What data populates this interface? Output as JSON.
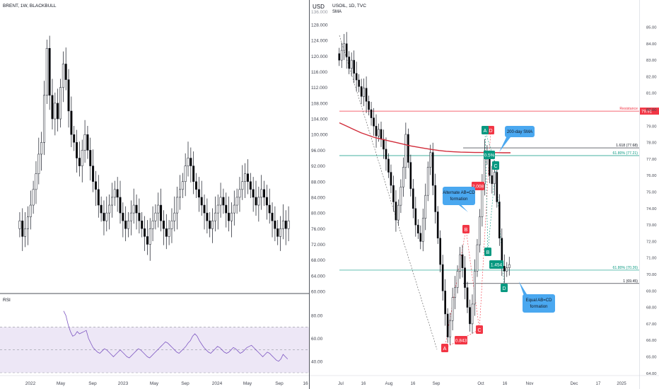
{
  "chart_data": [
    {
      "type": "candlestick",
      "title": "BRENT, 1W, BLACKBULL",
      "y_axis_label": "USD",
      "ylim": [
        60,
        136
      ],
      "y_ticks": [
        "128.000",
        "124.000",
        "120.000",
        "116.000",
        "112.000",
        "108.000",
        "104.000",
        "100.000",
        "96.000",
        "92.000",
        "88.000",
        "84.000",
        "80.000",
        "76.000",
        "72.000",
        "68.000",
        "64.000",
        "60.000"
      ],
      "y_top_partial": "136.000",
      "x_ticks": [
        "2022",
        "May",
        "Sep",
        "2023",
        "May",
        "Sep",
        "2024",
        "May",
        "Sep",
        "16"
      ],
      "closes_approx": [
        78,
        74,
        76,
        79,
        82,
        86,
        90,
        95,
        98,
        110,
        122,
        110,
        104,
        108,
        104,
        112,
        118,
        114,
        106,
        100,
        98,
        94,
        92,
        96,
        100,
        96,
        92,
        88,
        86,
        82,
        80,
        78,
        80,
        82,
        84,
        86,
        84,
        80,
        78,
        76,
        78,
        80,
        82,
        80,
        78,
        76,
        74,
        72,
        76,
        78,
        80,
        82,
        78,
        76,
        74,
        76,
        78,
        80,
        84,
        86,
        88,
        92,
        94,
        92,
        88,
        86,
        84,
        82,
        80,
        78,
        76,
        78,
        80,
        82,
        84,
        82,
        80,
        78,
        80,
        82,
        84,
        86,
        88,
        90,
        88,
        86,
        84,
        82,
        84,
        86,
        84,
        82,
        80,
        78,
        76,
        74,
        76,
        78,
        76,
        78
      ],
      "rsi": {
        "label": "RSI",
        "ylim": [
          30,
          90
        ],
        "y_ticks": [
          "80.00",
          "60.00",
          "40.00"
        ],
        "band": [
          30,
          70
        ],
        "mid": 50,
        "values_approx": [
          84,
          80,
          72,
          66,
          62,
          63,
          66,
          64,
          65,
          66,
          67,
          60,
          56,
          52,
          50,
          48,
          47,
          49,
          51,
          50,
          48,
          46,
          44,
          46,
          48,
          50,
          48,
          46,
          44,
          43,
          45,
          47,
          49,
          51,
          50,
          48,
          46,
          44,
          43,
          45,
          47,
          49,
          51,
          53,
          55,
          57,
          56,
          54,
          52,
          50,
          48,
          47,
          49,
          51,
          53,
          56,
          58,
          62,
          64,
          62,
          58,
          55,
          52,
          50,
          48,
          47,
          49,
          51,
          53,
          52,
          50,
          48,
          47,
          48,
          50,
          52,
          51,
          49,
          47,
          48,
          50,
          52,
          53,
          54,
          52,
          50,
          48,
          46,
          44,
          46,
          48,
          47,
          45,
          43,
          41,
          40,
          42,
          46,
          44,
          42
        ]
      }
    },
    {
      "type": "candlestick",
      "title": "USOIL, 1D, TVC",
      "subtitle": "SMA",
      "ylim": [
        63.5,
        85.5
      ],
      "y_ticks": [
        "85.00",
        "84.00",
        "83.00",
        "82.00",
        "81.00",
        "80.00",
        "79.00",
        "78.00",
        "77.00",
        "76.00",
        "75.00",
        "74.00",
        "73.00",
        "72.00",
        "71.00",
        "70.00",
        "69.00",
        "68.00",
        "67.00",
        "66.00",
        "65.00",
        "64.00"
      ],
      "x_ticks": [
        "Jul",
        "16",
        "Aug",
        "16",
        "Sep",
        "Oct",
        "16",
        "Nov",
        "Dec",
        "17",
        "2025"
      ],
      "closes_approx": [
        83.0,
        83.6,
        84.0,
        83.2,
        82.5,
        83.0,
        82.2,
        81.8,
        81.4,
        80.8,
        81.3,
        80.5,
        80.0,
        79.5,
        79.0,
        78.4,
        78.8,
        78.2,
        77.6,
        77.0,
        76.2,
        75.4,
        74.4,
        73.3,
        74.2,
        75.3,
        76.5,
        78.5,
        76.8,
        75.2,
        74.0,
        73.0,
        72.5,
        72.0,
        73.4,
        74.8,
        76.5,
        77.4,
        75.4,
        73.8,
        72.2,
        70.6,
        69.0,
        67.6,
        66.2,
        67.2,
        68.6,
        69.2,
        70.2,
        71.2,
        70.4,
        69.2,
        68.0,
        67.0,
        68.2,
        70.2,
        71.8,
        73.5,
        75.5,
        77.5,
        77.0,
        76.0,
        75.5,
        76.2,
        74.4,
        72.2,
        70.5,
        70.2,
        70.4,
        70.6
      ],
      "sma_label": "200-day SMA",
      "sma_approx": [
        79.2,
        79.0,
        78.8,
        78.6,
        78.45,
        78.3,
        78.2,
        78.1,
        78.0,
        77.9,
        77.8,
        77.72,
        77.65,
        77.58,
        77.52,
        77.47,
        77.44,
        77.42,
        77.41,
        77.4,
        77.4,
        77.39,
        77.39,
        77.38,
        77.38
      ],
      "levels": [
        {
          "label": "Resistance",
          "value": 79.91,
          "price_tag": "79.91",
          "color": "#f23645"
        },
        {
          "label": "1.618 (77.68)",
          "value": 77.68,
          "color": "#131722"
        },
        {
          "label": "61.80% (77.21)",
          "value": 77.21,
          "color": "#089981"
        },
        {
          "label": "61.80% (70.26)",
          "value": 70.26,
          "color": "#089981"
        },
        {
          "label": "1 (69.45)",
          "value": 69.45,
          "color": "#131722"
        }
      ],
      "pattern_points": [
        {
          "label": "A",
          "value": 65.35,
          "color": "#f23645"
        },
        {
          "label": "B",
          "value": 72.6,
          "color": "#f23645"
        },
        {
          "label": "C",
          "value": 65.9,
          "color": "#f23645"
        },
        {
          "label": "D",
          "value": 78.45,
          "color": "#f23645"
        },
        {
          "label": "A",
          "value": 78.45,
          "color": "#089981"
        },
        {
          "label": "B",
          "value": 71.0,
          "color": "#089981"
        },
        {
          "label": "C",
          "value": 76.55,
          "color": "#089981"
        },
        {
          "label": "D",
          "value": 68.95,
          "color": "#089981"
        }
      ],
      "ratio_labels": [
        "2.008",
        "0.843",
        "1.454",
        "0.5%"
      ],
      "callouts": [
        {
          "lines": [
            "200-day SMA"
          ]
        },
        {
          "lines": [
            "Alternate AB=CD",
            "formation"
          ]
        },
        {
          "lines": [
            "Equal AB=CD",
            "formation"
          ]
        }
      ]
    }
  ],
  "colors": {
    "up": "#ffffff",
    "down": "#000000",
    "outline": "#131722",
    "sma": "#d12c3a",
    "resistance": "#f23645",
    "fib_green": "#089981",
    "pattern_red": "#f23645",
    "pattern_green": "#089981",
    "callout_blue": "#4aa8f0",
    "rsi_line": "#7e57c2",
    "rsi_band": "#ede7f6",
    "axis_text": "#434651",
    "divider": "#131722"
  }
}
